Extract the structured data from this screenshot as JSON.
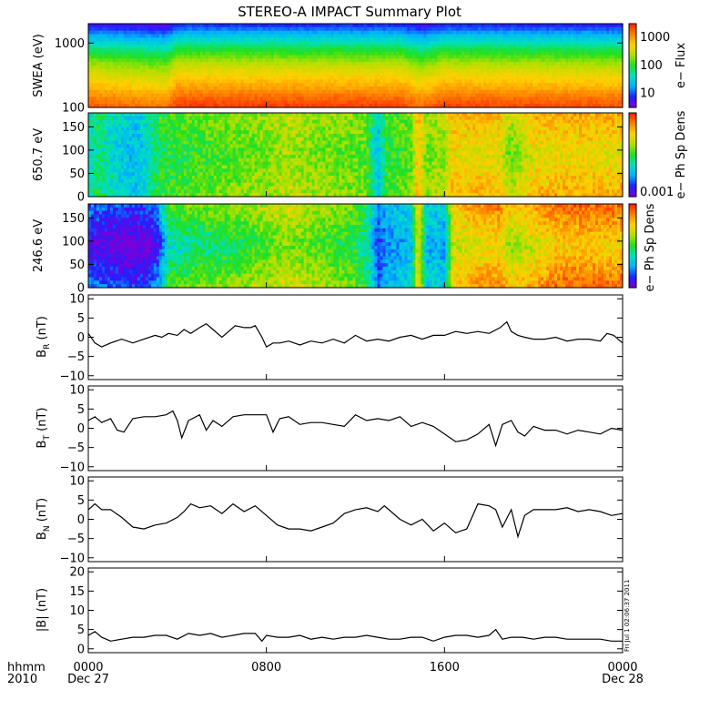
{
  "title": "STEREO-A IMPACT Summary Plot",
  "timestamp": "Fri Jul 1 02:06:37 2011",
  "time_axis": {
    "corner_top": "hhmm",
    "corner_bottom": "2010",
    "ticks": [
      {
        "label": "0000",
        "hour": 0,
        "date": "Dec 27"
      },
      {
        "label": "0800",
        "hour": 8,
        "date": ""
      },
      {
        "label": "1600",
        "hour": 16,
        "date": ""
      },
      {
        "label": "0000",
        "hour": 24,
        "date": "Dec 28"
      }
    ]
  },
  "colors": {
    "axis": "#000000",
    "line": "#000000",
    "colormap": [
      "#7a00d9",
      "#2020ff",
      "#00b0ff",
      "#00e0c0",
      "#20e020",
      "#b0e000",
      "#ffd000",
      "#ff8000",
      "#ff2000"
    ]
  },
  "chart_data": [
    {
      "type": "heatmap",
      "id": "swea",
      "ylabel": "SWEA (eV)",
      "yscale": "log",
      "ylim": [
        100,
        2000
      ],
      "yticks": [
        {
          "label": "1000",
          "v": 1000
        },
        {
          "label": "100",
          "v": 100
        }
      ],
      "colorbar": {
        "label": "e− Flux",
        "scale": "log",
        "range": [
          3,
          3000
        ],
        "ticks": [
          {
            "label": "1000",
            "v": 1000
          },
          {
            "label": "100",
            "v": 100
          },
          {
            "label": "10",
            "v": 10
          }
        ]
      },
      "profile": [
        [
          100,
          0.93
        ],
        [
          150,
          0.86
        ],
        [
          200,
          0.79
        ],
        [
          300,
          0.71
        ],
        [
          450,
          0.62
        ],
        [
          600,
          0.53
        ],
        [
          800,
          0.44
        ],
        [
          1000,
          0.36
        ],
        [
          1300,
          0.27
        ],
        [
          1600,
          0.17
        ],
        [
          2000,
          0.08
        ]
      ],
      "time_mod": [
        [
          0,
          0.0
        ],
        [
          3.5,
          -0.05
        ],
        [
          4,
          0.04
        ],
        [
          14,
          0.03
        ],
        [
          15,
          -0.03
        ],
        [
          16,
          0.03
        ],
        [
          19,
          0.02
        ],
        [
          24,
          0.01
        ]
      ]
    },
    {
      "type": "heatmap",
      "id": "pad650",
      "ylabel": "650.7 eV",
      "ylim": [
        0,
        180
      ],
      "yticks": [
        {
          "label": "150",
          "v": 150
        },
        {
          "label": "100",
          "v": 100
        },
        {
          "label": "50",
          "v": 50
        },
        {
          "label": "0",
          "v": 0
        }
      ],
      "colorbar": {
        "label": "e− Ph Sp Dens",
        "scale": "linear",
        "ticks": [
          {
            "label": "0.001",
            "frac": 0.0
          }
        ]
      },
      "base": [
        [
          0,
          0.34
        ],
        [
          0.4,
          0.45
        ],
        [
          0.9,
          0.38
        ],
        [
          1.5,
          0.32
        ],
        [
          2.2,
          0.28
        ],
        [
          2.6,
          0.36
        ],
        [
          3.2,
          0.48
        ],
        [
          4.2,
          0.5
        ],
        [
          6,
          0.55
        ],
        [
          8,
          0.58
        ],
        [
          9,
          0.63
        ],
        [
          10.5,
          0.58
        ],
        [
          12.5,
          0.55
        ],
        [
          13,
          0.28
        ],
        [
          13.4,
          0.5
        ],
        [
          14.5,
          0.55
        ],
        [
          14.8,
          0.77
        ],
        [
          15.2,
          0.58
        ],
        [
          16,
          0.62
        ],
        [
          16.3,
          0.74
        ],
        [
          18.5,
          0.72
        ],
        [
          19,
          0.58
        ],
        [
          20,
          0.73
        ],
        [
          22,
          0.75
        ],
        [
          24,
          0.74
        ]
      ],
      "pitch_mod": [
        [
          0,
          0.04
        ],
        [
          16,
          0.05
        ],
        [
          17,
          0.1
        ],
        [
          24,
          0.12
        ]
      ]
    },
    {
      "type": "heatmap",
      "id": "pad246",
      "ylabel": "246.6 eV",
      "ylim": [
        0,
        180
      ],
      "yticks": [
        {
          "label": "150",
          "v": 150
        },
        {
          "label": "100",
          "v": 100
        },
        {
          "label": "50",
          "v": 50
        },
        {
          "label": "0",
          "v": 0
        }
      ],
      "colorbar": {
        "label": "e− Ph Sp Dens",
        "scale": "linear",
        "ticks": []
      },
      "base": [
        [
          0,
          0.12
        ],
        [
          1,
          0.08
        ],
        [
          2,
          0.04
        ],
        [
          2.8,
          0.08
        ],
        [
          3.2,
          0.18
        ],
        [
          3.6,
          0.42
        ],
        [
          5,
          0.48
        ],
        [
          7,
          0.52
        ],
        [
          9,
          0.62
        ],
        [
          10.5,
          0.56
        ],
        [
          12,
          0.5
        ],
        [
          12.6,
          0.4
        ],
        [
          13,
          0.15
        ],
        [
          13.4,
          0.25
        ],
        [
          14.5,
          0.3
        ],
        [
          14.8,
          0.72
        ],
        [
          15.2,
          0.3
        ],
        [
          16,
          0.28
        ],
        [
          16.4,
          0.7
        ],
        [
          18.5,
          0.78
        ],
        [
          19,
          0.65
        ],
        [
          21,
          0.8
        ],
        [
          22,
          0.82
        ],
        [
          24,
          0.8
        ]
      ],
      "pitch_mod": [
        [
          0,
          0.16
        ],
        [
          3.5,
          0.18
        ],
        [
          9,
          0.12
        ],
        [
          16,
          0.05
        ],
        [
          17,
          0.16
        ],
        [
          24,
          0.18
        ]
      ]
    },
    {
      "type": "line",
      "id": "br",
      "ylabel": "B",
      "ylabel_sub": "R",
      "ylabel_unit": " (nT)",
      "ylim": [
        -11,
        11
      ],
      "yticks": [
        {
          "label": "10",
          "v": 10
        },
        {
          "label": "5",
          "v": 5
        },
        {
          "label": "0",
          "v": 0
        },
        {
          "label": "−5",
          "v": -5
        },
        {
          "label": "−10",
          "v": -10
        }
      ],
      "x_hours": [
        0,
        0.3,
        0.6,
        1,
        1.5,
        2,
        2.5,
        3,
        3.3,
        3.6,
        4,
        4.3,
        4.6,
        5,
        5.3,
        5.6,
        6,
        6.3,
        6.6,
        7,
        7.3,
        7.5,
        7.8,
        8,
        8.3,
        8.6,
        9,
        9.5,
        10,
        10.5,
        11,
        11.5,
        12,
        12.5,
        13,
        13.5,
        14,
        14.5,
        15,
        15.5,
        16,
        16.5,
        17,
        17.5,
        18,
        18.5,
        18.8,
        19,
        19.3,
        19.6,
        20,
        20.5,
        21,
        21.5,
        22,
        22.5,
        23,
        23.3,
        23.6,
        24
      ],
      "values": [
        1,
        -1.5,
        -2.5,
        -1.5,
        -0.5,
        -1.5,
        -0.5,
        0.5,
        0,
        1,
        0.5,
        2,
        1,
        2.5,
        3.5,
        2,
        0,
        1.5,
        3,
        2.5,
        2.5,
        3,
        0,
        -2.5,
        -1.5,
        -1.5,
        -1,
        -2,
        -1,
        -1.5,
        -0.5,
        -1.5,
        0.5,
        -1,
        -0.5,
        -1,
        0,
        0.5,
        -0.5,
        0.5,
        0.5,
        1.5,
        1,
        1.5,
        1,
        2.5,
        4,
        1.5,
        0.5,
        0,
        -0.5,
        -0.5,
        0,
        -1,
        -0.5,
        -0.5,
        -1,
        1,
        0.5,
        -1.5
      ]
    },
    {
      "type": "line",
      "id": "bt",
      "ylabel": "B",
      "ylabel_sub": "T",
      "ylabel_unit": " (nT)",
      "ylim": [
        -11,
        11
      ],
      "yticks": [
        {
          "label": "10",
          "v": 10
        },
        {
          "label": "5",
          "v": 5
        },
        {
          "label": "0",
          "v": 0
        },
        {
          "label": "−5",
          "v": -5
        },
        {
          "label": "−10",
          "v": -10
        }
      ],
      "x_hours": [
        0,
        0.3,
        0.6,
        1,
        1.3,
        1.6,
        2,
        2.5,
        3,
        3.5,
        3.8,
        4,
        4.2,
        4.5,
        5,
        5.3,
        5.6,
        6,
        6.5,
        7,
        7.5,
        8,
        8.3,
        8.6,
        9,
        9.5,
        10,
        10.5,
        11,
        11.5,
        12,
        12.5,
        13,
        13.5,
        14,
        14.5,
        15,
        15.5,
        16,
        16.5,
        17,
        17.5,
        18,
        18.3,
        18.6,
        19,
        19.3,
        19.6,
        20,
        20.5,
        21,
        21.5,
        22,
        22.5,
        23,
        23.5,
        24
      ],
      "values": [
        2,
        3,
        1.5,
        2.5,
        -0.5,
        -1,
        2.5,
        3,
        3,
        3.5,
        4.5,
        2,
        -2.5,
        2,
        3.5,
        -0.5,
        2,
        0.5,
        3,
        3.5,
        3.5,
        3.5,
        -1,
        2.5,
        3,
        1,
        1.5,
        1.5,
        1,
        0.5,
        3.5,
        2,
        2.5,
        2,
        3,
        0.5,
        1.5,
        0.5,
        -1.5,
        -3.5,
        -3,
        -1.5,
        1,
        -4.5,
        1,
        2,
        -1,
        -2,
        0.5,
        -0.5,
        -0.5,
        -1.5,
        -0.5,
        -1,
        -1.5,
        0,
        -0.5
      ]
    },
    {
      "type": "line",
      "id": "bn",
      "ylabel": "B",
      "ylabel_sub": "N",
      "ylabel_unit": " (nT)",
      "ylim": [
        -11,
        11
      ],
      "yticks": [
        {
          "label": "10",
          "v": 10
        },
        {
          "label": "5",
          "v": 5
        },
        {
          "label": "0",
          "v": 0
        },
        {
          "label": "−5",
          "v": -5
        },
        {
          "label": "−10",
          "v": -10
        }
      ],
      "x_hours": [
        0,
        0.3,
        0.6,
        1,
        1.5,
        2,
        2.5,
        3,
        3.5,
        4,
        4.3,
        4.6,
        5,
        5.5,
        6,
        6.5,
        7,
        7.5,
        8,
        8.5,
        9,
        9.5,
        10,
        10.5,
        11,
        11.5,
        12,
        12.5,
        13,
        13.3,
        13.6,
        14,
        14.5,
        15,
        15.5,
        16,
        16.5,
        17,
        17.5,
        18,
        18.3,
        18.6,
        19,
        19.3,
        19.6,
        20,
        20.5,
        21,
        21.5,
        22,
        22.5,
        23,
        23.5,
        24
      ],
      "values": [
        2.5,
        4,
        2.5,
        2.5,
        0.5,
        -2,
        -2.5,
        -1.5,
        -1,
        0.5,
        2,
        4,
        3,
        3.5,
        1.5,
        4,
        2,
        3.5,
        1,
        -1.5,
        -2.5,
        -2.5,
        -3,
        -2,
        -1,
        1.5,
        2.5,
        3,
        2,
        3.5,
        2,
        0,
        -1.5,
        0,
        -3,
        -1,
        -3.5,
        -2.5,
        4,
        3.5,
        2.5,
        -2,
        2.5,
        -4.5,
        1,
        2.5,
        2.5,
        2.5,
        3,
        2,
        2.5,
        2,
        1,
        1.5
      ]
    },
    {
      "type": "line",
      "id": "bmag",
      "ylabel": "|B|",
      "ylabel_sub": "",
      "ylabel_unit": " (nT)",
      "ylim": [
        -1,
        21
      ],
      "yticks": [
        {
          "label": "20",
          "v": 20
        },
        {
          "label": "15",
          "v": 15
        },
        {
          "label": "10",
          "v": 10
        },
        {
          "label": "5",
          "v": 5
        },
        {
          "label": "0",
          "v": 0
        }
      ],
      "x_hours": [
        0,
        0.3,
        0.6,
        1,
        1.5,
        2,
        2.5,
        3,
        3.5,
        4,
        4.5,
        5,
        5.5,
        6,
        6.5,
        7,
        7.5,
        7.8,
        8,
        8.5,
        9,
        9.5,
        10,
        10.5,
        11,
        11.5,
        12,
        12.5,
        13,
        13.5,
        14,
        14.5,
        15,
        15.5,
        16,
        16.5,
        17,
        17.5,
        18,
        18.3,
        18.6,
        19,
        19.5,
        20,
        20.5,
        21,
        21.5,
        22,
        22.5,
        23,
        23.5,
        24
      ],
      "values": [
        3.5,
        4.5,
        3,
        2,
        2.5,
        3,
        3,
        3.5,
        3.5,
        2.5,
        4,
        3.5,
        4,
        3,
        3.5,
        4,
        4,
        2,
        3.5,
        3,
        3,
        3.5,
        2.5,
        3,
        2.5,
        3,
        3,
        3.5,
        3,
        2.5,
        2.5,
        3,
        3,
        2,
        3,
        3.5,
        3.5,
        3,
        3.5,
        5,
        2.5,
        3,
        3,
        2.5,
        3,
        3,
        2.5,
        2.5,
        2.5,
        2.5,
        2,
        2
      ]
    }
  ]
}
